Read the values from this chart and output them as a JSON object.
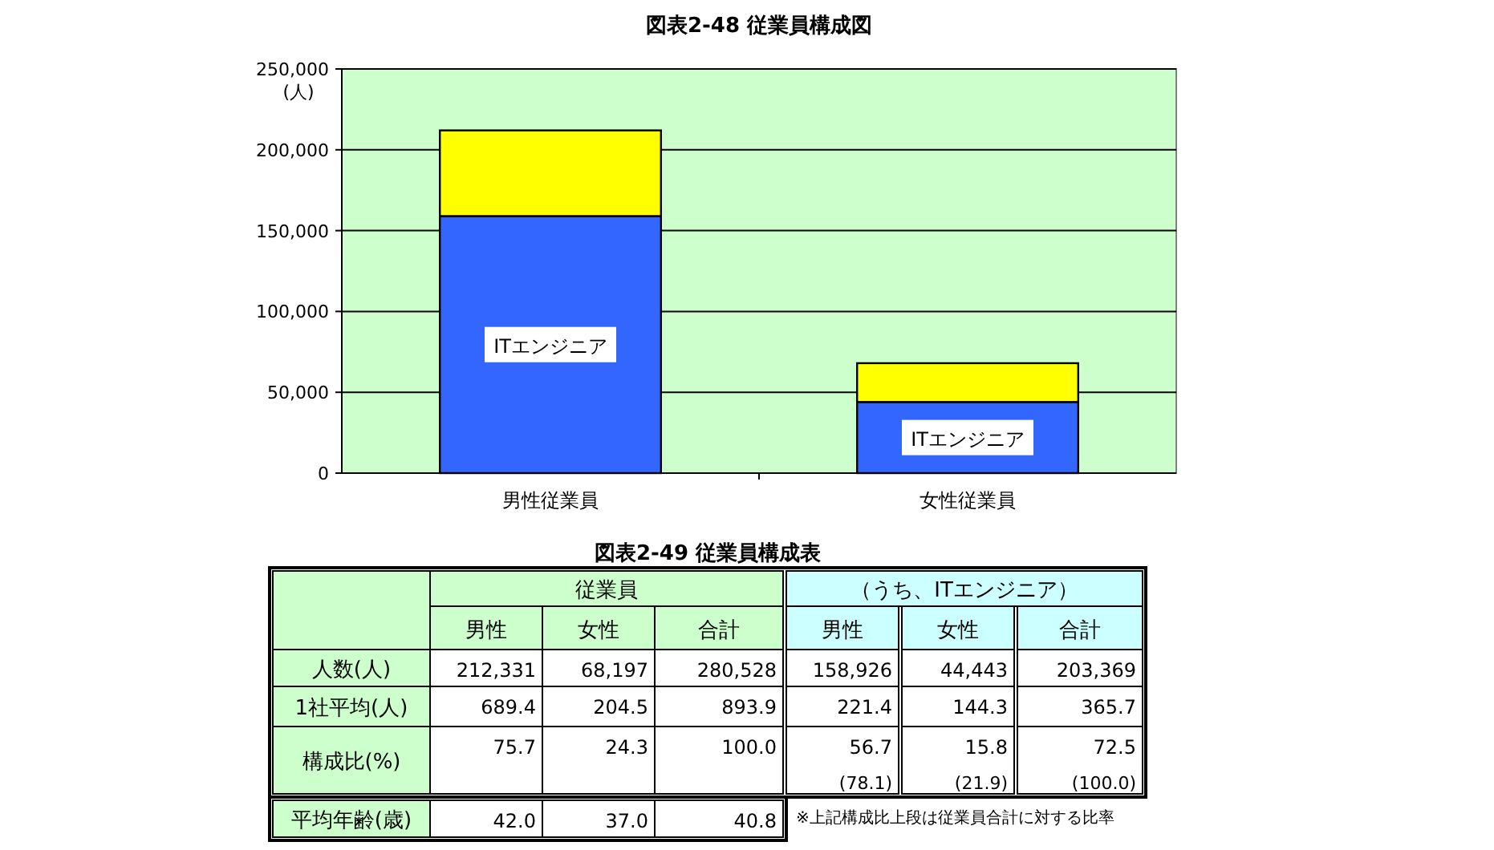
{
  "chart_data": [
    {
      "type": "bar",
      "title": "図表2-48  従業員構成図",
      "ylabel": "(人)",
      "categories": [
        "男性従業員",
        "女性従業員"
      ],
      "stacked": true,
      "series": [
        {
          "name": "ITエンジニア",
          "color": "#3366ff",
          "values": [
            159000,
            44000
          ]
        },
        {
          "color": "#ffff00",
          "values": [
            53000,
            24000
          ]
        }
      ],
      "ylim": [
        0,
        250000
      ],
      "yticks": [
        {
          "value": 0,
          "label": "0"
        },
        {
          "value": 50000,
          "label": "50,000"
        },
        {
          "value": 100000,
          "label": "100,000"
        },
        {
          "value": 150000,
          "label": "150,000"
        },
        {
          "value": 200000,
          "label": "200,000"
        },
        {
          "value": 250000,
          "label": "250,000"
        }
      ],
      "grid": "y"
    },
    {
      "type": "other",
      "title": "図表2-49  従業員構成表",
      "categories": [
        "男性",
        "女性",
        "合計",
        "男性",
        "女性",
        "合計"
      ],
      "y_categories": [
        "人数(人)",
        "1社平均(人)",
        "構成比(%)",
        "平均年齢(歳)"
      ],
      "cell_labels": [
        [
          "212,331",
          "68,197",
          "280,528",
          "158,926",
          "44,443",
          "203,369"
        ],
        [
          "689.4",
          "204.5",
          "893.9",
          "221.4",
          "144.3",
          "365.7"
        ],
        [
          "75.7",
          "24.3",
          "100.0",
          "56.7\n(78.1)",
          "15.8\n(21.9)",
          "72.5\n(100.0)"
        ],
        [
          "42.0",
          "37.0",
          "40.8",
          null,
          null,
          null
        ]
      ],
      "annotations": [
        "従業員",
        "（うち、ITエンジニア）",
        "※上記構成比上段は従業員合計に対する比率"
      ]
    }
  ]
}
